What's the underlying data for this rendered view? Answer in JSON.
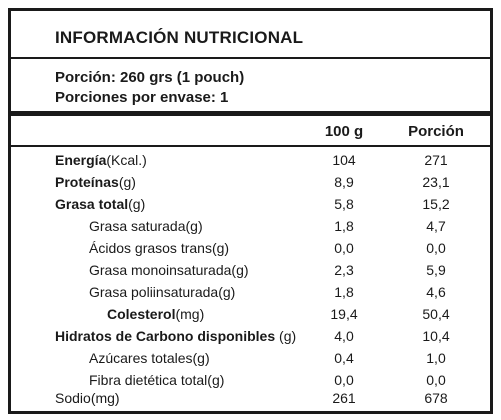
{
  "title": "INFORMACIÓN NUTRICIONAL",
  "serving": {
    "portion": "Porción: 260 grs (1 pouch)",
    "servings_per_container": "Porciones por envase: 1"
  },
  "columns": {
    "per_100g": "100 g",
    "per_portion": "Porción"
  },
  "rows": [
    {
      "name": "Energía",
      "unit": "(Kcal.)",
      "v100": "104",
      "vportion": "271"
    },
    {
      "name": "Proteínas",
      "unit": "(g)",
      "v100": "8,9",
      "vportion": "23,1"
    },
    {
      "name": "Grasa total",
      "unit": "(g)",
      "v100": "5,8",
      "vportion": "15,2"
    },
    {
      "name": "Grasa saturada",
      "unit": "(g)",
      "v100": "1,8",
      "vportion": "4,7"
    },
    {
      "name": "Ácidos grasos trans",
      "unit": "(g)",
      "v100": "0,0",
      "vportion": "0,0"
    },
    {
      "name": "Grasa monoinsaturada",
      "unit": "(g)",
      "v100": "2,3",
      "vportion": "5,9"
    },
    {
      "name": "Grasa poliinsaturada",
      "unit": "(g)",
      "v100": "1,8",
      "vportion": "4,6"
    },
    {
      "name": "Colesterol",
      "unit": "(mg)",
      "v100": "19,4",
      "vportion": "50,4"
    },
    {
      "name": "Hidratos de Carbono disponibles",
      "unit": "(g)",
      "v100": "4,0",
      "vportion": "10,4"
    },
    {
      "name": "Azúcares totales",
      "unit": "(g)",
      "v100": "0,4",
      "vportion": "1,0"
    },
    {
      "name": "Fibra dietética total",
      "unit": "(g)",
      "v100": "0,0",
      "vportion": "0,0"
    },
    {
      "name": "Sodio",
      "unit": "(mg)",
      "v100": "261",
      "vportion": "678"
    }
  ]
}
